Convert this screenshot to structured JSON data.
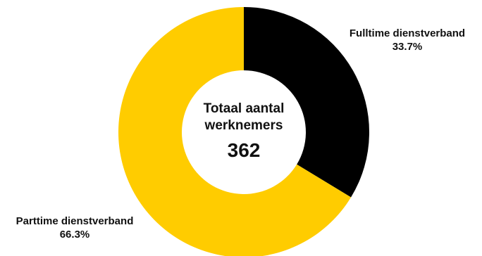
{
  "chart_data": {
    "type": "pie",
    "variant": "donut",
    "center": {
      "title": "Totaal aantal werknemers",
      "total": "362"
    },
    "slices": [
      {
        "label": "Fulltime dienstverband",
        "value": 33.7,
        "value_label": "33.7%",
        "color": "#000000"
      },
      {
        "label": "Parttime dienstverband",
        "value": 66.3,
        "value_label": "66.3%",
        "color": "#FFCC00"
      }
    ]
  }
}
